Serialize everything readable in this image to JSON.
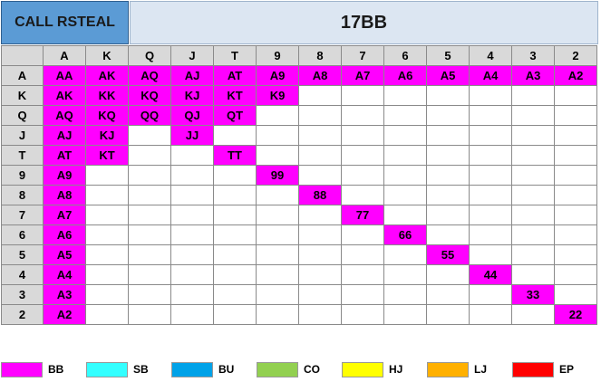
{
  "header": {
    "left_title": "CALL RSTEAL",
    "right_title": "17BB"
  },
  "ranks": [
    "A",
    "K",
    "Q",
    "J",
    "T",
    "9",
    "8",
    "7",
    "6",
    "5",
    "4",
    "3",
    "2"
  ],
  "highlight_color": "#ff00ff",
  "grid": {
    "rows": [
      {
        "rank": "A",
        "cells": [
          "AA",
          "AK",
          "AQ",
          "AJ",
          "AT",
          "A9",
          "A8",
          "A7",
          "A6",
          "A5",
          "A4",
          "A3",
          "A2"
        ]
      },
      {
        "rank": "K",
        "cells": [
          "AK",
          "KK",
          "KQ",
          "KJ",
          "KT",
          "K9",
          "",
          "",
          "",
          "",
          "",
          "",
          ""
        ]
      },
      {
        "rank": "Q",
        "cells": [
          "AQ",
          "KQ",
          "QQ",
          "QJ",
          "QT",
          "",
          "",
          "",
          "",
          "",
          "",
          "",
          ""
        ]
      },
      {
        "rank": "J",
        "cells": [
          "AJ",
          "KJ",
          "",
          "JJ",
          "",
          "",
          "",
          "",
          "",
          "",
          "",
          "",
          ""
        ]
      },
      {
        "rank": "T",
        "cells": [
          "AT",
          "KT",
          "",
          "",
          "TT",
          "",
          "",
          "",
          "",
          "",
          "",
          "",
          ""
        ]
      },
      {
        "rank": "9",
        "cells": [
          "A9",
          "",
          "",
          "",
          "",
          "99",
          "",
          "",
          "",
          "",
          "",
          "",
          ""
        ]
      },
      {
        "rank": "8",
        "cells": [
          "A8",
          "",
          "",
          "",
          "",
          "",
          "88",
          "",
          "",
          "",
          "",
          "",
          ""
        ]
      },
      {
        "rank": "7",
        "cells": [
          "A7",
          "",
          "",
          "",
          "",
          "",
          "",
          "77",
          "",
          "",
          "",
          "",
          ""
        ]
      },
      {
        "rank": "6",
        "cells": [
          "A6",
          "",
          "",
          "",
          "",
          "",
          "",
          "",
          "66",
          "",
          "",
          "",
          ""
        ]
      },
      {
        "rank": "5",
        "cells": [
          "A5",
          "",
          "",
          "",
          "",
          "",
          "",
          "",
          "",
          "55",
          "",
          "",
          ""
        ]
      },
      {
        "rank": "4",
        "cells": [
          "A4",
          "",
          "",
          "",
          "",
          "",
          "",
          "",
          "",
          "",
          "44",
          "",
          ""
        ]
      },
      {
        "rank": "3",
        "cells": [
          "A3",
          "",
          "",
          "",
          "",
          "",
          "",
          "",
          "",
          "",
          "",
          "33",
          ""
        ]
      },
      {
        "rank": "2",
        "cells": [
          "A2",
          "",
          "",
          "",
          "",
          "",
          "",
          "",
          "",
          "",
          "",
          "",
          "22"
        ]
      }
    ]
  },
  "legend": [
    {
      "label": "BB",
      "color": "#ff00ff"
    },
    {
      "label": "SB",
      "color": "#33ffff"
    },
    {
      "label": "BU",
      "color": "#00a2e8"
    },
    {
      "label": "CO",
      "color": "#92d050"
    },
    {
      "label": "HJ",
      "color": "#ffff00"
    },
    {
      "label": "LJ",
      "color": "#ffb000"
    },
    {
      "label": "EP",
      "color": "#ff0000"
    }
  ]
}
